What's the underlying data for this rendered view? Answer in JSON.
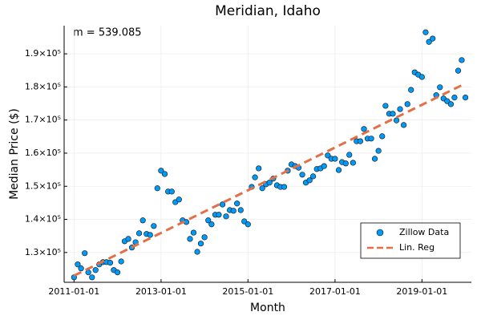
{
  "chart_data": {
    "type": "scatter",
    "title": "Meridian, Idaho",
    "xlabel": "Month",
    "ylabel": "Median Price ($)",
    "annotation": "m = 539.085",
    "xlim": [
      "2010-10-10",
      "2020-02-20"
    ],
    "xticks": [
      "2011-01-01",
      "2013-01-01",
      "2015-01-01",
      "2017-01-01",
      "2019-01-01"
    ],
    "ylim": [
      121000,
      198500
    ],
    "yticks": [
      {
        "value": 130000,
        "label": "1.3×10⁵"
      },
      {
        "value": 140000,
        "label": "1.4×10⁵"
      },
      {
        "value": 150000,
        "label": "1.5×10⁵"
      },
      {
        "value": 160000,
        "label": "1.6×10⁵"
      },
      {
        "value": 170000,
        "label": "1.7×10⁵"
      },
      {
        "value": 180000,
        "label": "1.8×10⁵"
      },
      {
        "value": 190000,
        "label": "1.9×10⁵"
      }
    ],
    "grid": true,
    "legend": "bottom-right",
    "series": [
      {
        "name": "Zillow Data",
        "color": "#009af9",
        "mode": "markers",
        "x": [
          "2011-01-01",
          "2011-02-01",
          "2011-03-01",
          "2011-04-01",
          "2011-05-01",
          "2011-06-01",
          "2011-07-01",
          "2011-08-01",
          "2011-09-01",
          "2011-10-01",
          "2011-11-01",
          "2011-12-01",
          "2012-01-01",
          "2012-02-01",
          "2012-03-01",
          "2012-04-01",
          "2012-05-01",
          "2012-06-01",
          "2012-07-01",
          "2012-08-01",
          "2012-09-01",
          "2012-10-01",
          "2012-11-01",
          "2012-12-01",
          "2013-01-01",
          "2013-02-01",
          "2013-03-01",
          "2013-04-01",
          "2013-05-01",
          "2013-06-01",
          "2013-07-01",
          "2013-08-01",
          "2013-09-01",
          "2013-10-01",
          "2013-11-01",
          "2013-12-01",
          "2014-01-01",
          "2014-02-01",
          "2014-03-01",
          "2014-04-01",
          "2014-05-01",
          "2014-06-01",
          "2014-07-01",
          "2014-08-01",
          "2014-09-01",
          "2014-10-01",
          "2014-11-01",
          "2014-12-01",
          "2015-01-01",
          "2015-02-01",
          "2015-03-01",
          "2015-04-01",
          "2015-05-01",
          "2015-06-01",
          "2015-07-01",
          "2015-08-01",
          "2015-09-01",
          "2015-10-01",
          "2015-11-01",
          "2015-12-01",
          "2016-01-01",
          "2016-02-01",
          "2016-03-01",
          "2016-04-01",
          "2016-05-01",
          "2016-06-01",
          "2016-07-01",
          "2016-08-01",
          "2016-09-01",
          "2016-10-01",
          "2016-11-01",
          "2016-12-01",
          "2017-01-01",
          "2017-02-01",
          "2017-03-01",
          "2017-04-01",
          "2017-05-01",
          "2017-06-01",
          "2017-07-01",
          "2017-08-01",
          "2017-09-01",
          "2017-10-01",
          "2017-11-01",
          "2017-12-01",
          "2018-01-01",
          "2018-02-01",
          "2018-03-01",
          "2018-04-01",
          "2018-05-01",
          "2018-06-01",
          "2018-07-01",
          "2018-08-01",
          "2018-09-01",
          "2018-10-01",
          "2018-11-01",
          "2018-12-01",
          "2019-01-01",
          "2019-02-01",
          "2019-03-01",
          "2019-04-01",
          "2019-05-01",
          "2019-06-01",
          "2019-07-01",
          "2019-08-01",
          "2019-09-01",
          "2019-10-01",
          "2019-11-01",
          "2019-12-01",
          "2020-01-01"
        ],
        "values": [
          122500,
          126400,
          125200,
          129800,
          124000,
          122500,
          124700,
          126400,
          127100,
          127100,
          126900,
          124700,
          124000,
          127300,
          133400,
          134100,
          131500,
          133100,
          135800,
          139700,
          135600,
          135300,
          138000,
          149400,
          154700,
          153700,
          148400,
          148400,
          145200,
          146000,
          139700,
          139200,
          134100,
          136000,
          130200,
          132700,
          134600,
          139700,
          138500,
          141400,
          141400,
          144500,
          140900,
          142800,
          142600,
          144800,
          142800,
          139400,
          138500,
          149800,
          152700,
          155400,
          149400,
          150600,
          151100,
          152300,
          150300,
          149800,
          149800,
          154700,
          156600,
          156100,
          155600,
          153500,
          151100,
          151800,
          153000,
          155200,
          155400,
          156100,
          159300,
          158300,
          158300,
          154900,
          157300,
          156900,
          159500,
          157100,
          163600,
          163600,
          167300,
          164400,
          164400,
          158300,
          160700,
          165100,
          174300,
          171900,
          171900,
          169900,
          173300,
          168500,
          174800,
          179100,
          184400,
          183700,
          183000,
          196500,
          193600,
          194600,
          177500,
          179900,
          176500,
          175700,
          174800,
          176800,
          184900,
          188100,
          176800
        ]
      },
      {
        "name": "Lin. Reg",
        "color": "#e26f46",
        "mode": "dashed-line",
        "x": [
          "2011-01-01",
          "2019-12-01"
        ],
        "values": [
          123000,
          180500
        ]
      }
    ]
  }
}
